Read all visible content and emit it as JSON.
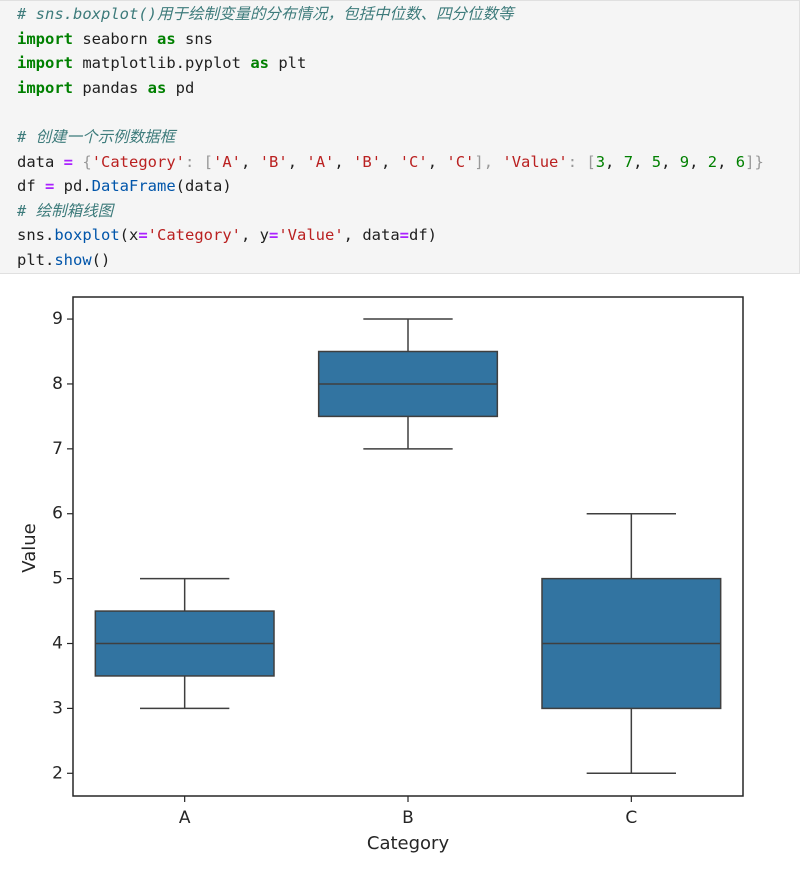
{
  "code": {
    "lines": [
      [
        {
          "text": "# sns.boxplot()用于绘制变量的分布情况，包括中位数、四分位数等",
          "color": "#3d7b7b",
          "italic": true
        }
      ],
      [
        {
          "text": "import",
          "color": "#008000",
          "bold": true
        },
        {
          "text": " seaborn ",
          "color": "#1f1f1f"
        },
        {
          "text": "as",
          "color": "#008000",
          "bold": true
        },
        {
          "text": " sns",
          "color": "#1f1f1f"
        }
      ],
      [
        {
          "text": "import",
          "color": "#008000",
          "bold": true
        },
        {
          "text": " matplotlib.pyplot ",
          "color": "#1f1f1f"
        },
        {
          "text": "as",
          "color": "#008000",
          "bold": true
        },
        {
          "text": " plt",
          "color": "#1f1f1f"
        }
      ],
      [
        {
          "text": "import",
          "color": "#008000",
          "bold": true
        },
        {
          "text": " pandas ",
          "color": "#1f1f1f"
        },
        {
          "text": "as",
          "color": "#008000",
          "bold": true
        },
        {
          "text": " pd",
          "color": "#1f1f1f"
        }
      ],
      [],
      [
        {
          "text": "# 创建一个示例数据框",
          "color": "#3d7b7b",
          "italic": true
        }
      ],
      [
        {
          "text": "data ",
          "color": "#1f1f1f"
        },
        {
          "text": "=",
          "color": "#aa22ff",
          "bold": true
        },
        {
          "text": " {",
          "color": "#999999"
        },
        {
          "text": "'Category'",
          "color": "#ba2121"
        },
        {
          "text": ": [",
          "color": "#999999"
        },
        {
          "text": "'A'",
          "color": "#ba2121"
        },
        {
          "text": ", ",
          "color": "#1f1f1f"
        },
        {
          "text": "'B'",
          "color": "#ba2121"
        },
        {
          "text": ", ",
          "color": "#1f1f1f"
        },
        {
          "text": "'A'",
          "color": "#ba2121"
        },
        {
          "text": ", ",
          "color": "#1f1f1f"
        },
        {
          "text": "'B'",
          "color": "#ba2121"
        },
        {
          "text": ", ",
          "color": "#1f1f1f"
        },
        {
          "text": "'C'",
          "color": "#ba2121"
        },
        {
          "text": ", ",
          "color": "#1f1f1f"
        },
        {
          "text": "'C'",
          "color": "#ba2121"
        },
        {
          "text": "], ",
          "color": "#999999"
        },
        {
          "text": "'Value'",
          "color": "#ba2121"
        },
        {
          "text": ": [",
          "color": "#999999"
        },
        {
          "text": "3",
          "color": "#008000"
        },
        {
          "text": ", ",
          "color": "#1f1f1f"
        },
        {
          "text": "7",
          "color": "#008000"
        },
        {
          "text": ", ",
          "color": "#1f1f1f"
        },
        {
          "text": "5",
          "color": "#008000"
        },
        {
          "text": ", ",
          "color": "#1f1f1f"
        },
        {
          "text": "9",
          "color": "#008000"
        },
        {
          "text": ", ",
          "color": "#1f1f1f"
        },
        {
          "text": "2",
          "color": "#008000"
        },
        {
          "text": ", ",
          "color": "#1f1f1f"
        },
        {
          "text": "6",
          "color": "#008000"
        },
        {
          "text": "]}",
          "color": "#999999"
        }
      ],
      [
        {
          "text": "df ",
          "color": "#1f1f1f"
        },
        {
          "text": "=",
          "color": "#aa22ff",
          "bold": true
        },
        {
          "text": " pd.",
          "color": "#1f1f1f"
        },
        {
          "text": "DataFrame",
          "color": "#0055aa"
        },
        {
          "text": "(data)",
          "color": "#1f1f1f"
        }
      ],
      [
        {
          "text": "# 绘制箱线图",
          "color": "#3d7b7b",
          "italic": true
        }
      ],
      [
        {
          "text": "sns.",
          "color": "#1f1f1f"
        },
        {
          "text": "boxplot",
          "color": "#0055aa"
        },
        {
          "text": "(x",
          "color": "#1f1f1f"
        },
        {
          "text": "=",
          "color": "#aa22ff",
          "bold": true
        },
        {
          "text": "'Category'",
          "color": "#ba2121"
        },
        {
          "text": ", y",
          "color": "#1f1f1f"
        },
        {
          "text": "=",
          "color": "#aa22ff",
          "bold": true
        },
        {
          "text": "'Value'",
          "color": "#ba2121"
        },
        {
          "text": ", data",
          "color": "#1f1f1f"
        },
        {
          "text": "=",
          "color": "#aa22ff",
          "bold": true
        },
        {
          "text": "df)",
          "color": "#1f1f1f"
        }
      ],
      [
        {
          "text": "plt.",
          "color": "#1f1f1f"
        },
        {
          "text": "show",
          "color": "#0055aa"
        },
        {
          "text": "()",
          "color": "#1f1f1f"
        }
      ]
    ]
  },
  "chart_data": {
    "type": "boxplot",
    "xlabel": "Category",
    "ylabel": "Value",
    "categories": [
      "A",
      "B",
      "C"
    ],
    "boxes": [
      {
        "whislo": 3,
        "q1": 3.5,
        "med": 4,
        "q3": 4.5,
        "whishi": 5
      },
      {
        "whislo": 7,
        "q1": 7.5,
        "med": 8,
        "q3": 8.5,
        "whishi": 9
      },
      {
        "whislo": 2,
        "q1": 3,
        "med": 4,
        "q3": 5,
        "whishi": 6
      }
    ],
    "color": "#3274a1",
    "ylim": [
      1.65,
      9.34
    ],
    "yticks": [
      2,
      3,
      4,
      5,
      6,
      7,
      8,
      9
    ],
    "grid": false
  }
}
